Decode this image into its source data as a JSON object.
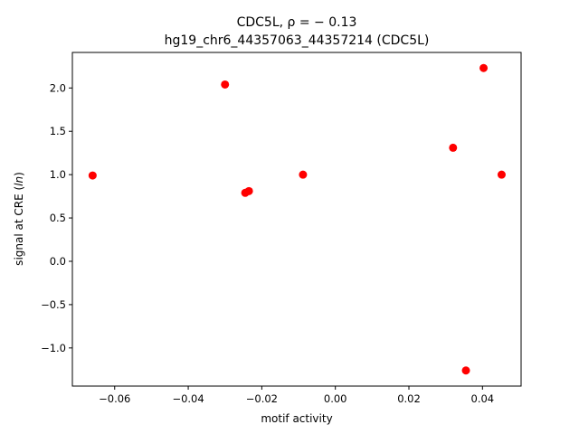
{
  "chart_data": {
    "type": "scatter",
    "title_line1": "CDC5L, ρ = − 0.13",
    "title_line2": "hg19_chr6_44357063_44357214 (CDC5L)",
    "xlabel": "motif activity",
    "ylabel": "signal at CRE (ln)",
    "xlim": [
      -0.0715,
      0.0505
    ],
    "ylim": [
      -1.44,
      2.41
    ],
    "xticks": [
      -0.06,
      -0.04,
      -0.02,
      0.0,
      0.02,
      0.04
    ],
    "xtick_labels": [
      "−0.06",
      "−0.04",
      "−0.02",
      "0.00",
      "0.02",
      "0.04"
    ],
    "yticks": [
      -1.0,
      -0.5,
      0.0,
      0.5,
      1.0,
      1.5,
      2.0
    ],
    "ytick_labels": [
      "−1.0",
      "−0.5",
      "0.0",
      "0.5",
      "1.0",
      "1.5",
      "2.0"
    ],
    "grid": false,
    "marker_color": "#ff0000",
    "points": [
      {
        "x": -0.066,
        "y": 0.99
      },
      {
        "x": -0.03,
        "y": 2.04
      },
      {
        "x": -0.0245,
        "y": 0.79
      },
      {
        "x": -0.0235,
        "y": 0.81
      },
      {
        "x": -0.0088,
        "y": 1.0
      },
      {
        "x": 0.032,
        "y": 1.31
      },
      {
        "x": 0.0355,
        "y": -1.26
      },
      {
        "x": 0.0403,
        "y": 2.23
      },
      {
        "x": 0.0452,
        "y": 1.0
      }
    ]
  }
}
